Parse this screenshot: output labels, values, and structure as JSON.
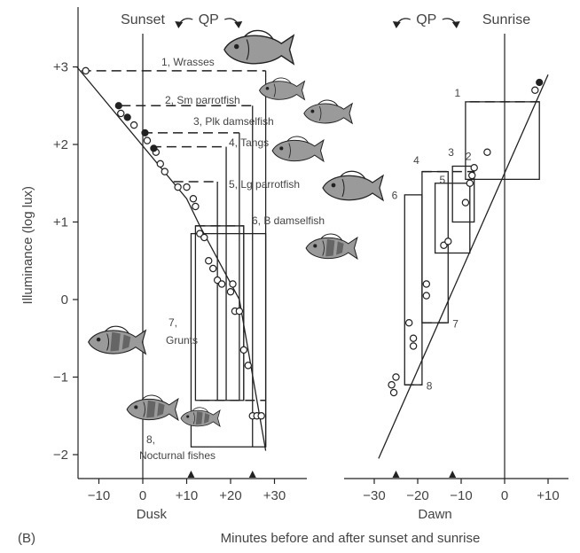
{
  "chart_data": {
    "type": "scatter",
    "panel_label": "(B)",
    "ylabel": "Illuminance (log lux)",
    "xlabel": "Minutes before and after sunset and sunrise",
    "ylim": [
      -2.3,
      3.7
    ],
    "yticks": [
      3,
      2,
      1,
      0,
      -1,
      -2
    ],
    "ytick_labels": [
      "+3",
      "+2",
      "+1",
      "0",
      "−1",
      "−2"
    ],
    "grid": false,
    "dusk": {
      "xlabel": "Dusk",
      "header": "Sunset",
      "qp_label": "QP",
      "reference_line_x": 0,
      "xlim": [
        -14,
        35
      ],
      "xticks": [
        -10,
        0,
        10,
        20,
        30
      ],
      "xtick_labels": [
        "−10",
        "0",
        "+10",
        "+20",
        "+30"
      ],
      "markers_x": [
        11,
        25
      ],
      "points_open": [
        [
          -13,
          2.95
        ],
        [
          -5,
          2.4
        ],
        [
          -2,
          2.25
        ],
        [
          1,
          2.05
        ],
        [
          3,
          1.9
        ],
        [
          4,
          1.75
        ],
        [
          5,
          1.65
        ],
        [
          8,
          1.45
        ],
        [
          10,
          1.45
        ],
        [
          11.5,
          1.3
        ],
        [
          12,
          1.2
        ],
        [
          13,
          0.85
        ],
        [
          14,
          0.8
        ],
        [
          15,
          0.5
        ],
        [
          16,
          0.4
        ],
        [
          17,
          0.25
        ],
        [
          18,
          0.2
        ],
        [
          20,
          0.1
        ],
        [
          20.5,
          0.2
        ],
        [
          21,
          -0.15
        ],
        [
          22,
          -0.15
        ],
        [
          23,
          -0.65
        ],
        [
          24,
          -0.85
        ],
        [
          25,
          -1.5
        ],
        [
          26,
          -1.5
        ],
        [
          27,
          -1.5
        ]
      ],
      "points_filled": [
        [
          -5.5,
          2.5
        ],
        [
          -3.5,
          2.35
        ],
        [
          0.5,
          2.15
        ],
        [
          2.5,
          1.95
        ]
      ],
      "trend": [
        [
          -15,
          3.0
        ],
        [
          10,
          1.3
        ],
        [
          13,
          0.95
        ],
        [
          22,
          0.0
        ],
        [
          28,
          -1.95
        ]
      ],
      "groups": [
        {
          "label": "1, Wrasses",
          "x_start": -14,
          "x_end": 28,
          "y_top": 2.95,
          "y_bottom": -1.9
        },
        {
          "label": "2, Sm parrotfish",
          "x_start": -5,
          "x_end": 25,
          "y_top": 2.5,
          "y_bottom": -1.9
        },
        {
          "label": "3, Plk damselfish",
          "x_start": 0,
          "x_end": 22,
          "y_top": 2.15,
          "y_bottom": -1.3
        },
        {
          "label": "4, Tangs",
          "x_start": 2,
          "x_end": 19,
          "y_top": 1.97,
          "y_bottom": -1.3
        },
        {
          "label": "5, Lg parrotfish",
          "x_start": 7,
          "x_end": 17,
          "y_top": 1.52,
          "y_bottom": -1.3
        },
        {
          "label": "6, B damselfish",
          "x_start": 12,
          "x_end": 23,
          "y_top": 0.95,
          "y_bottom": -1.3
        },
        {
          "label": "7, Grunts",
          "x_start": null,
          "x_end": null,
          "y_top": null,
          "y_bottom": null
        },
        {
          "label": "8, Nocturnal fishes",
          "x_start": null,
          "x_end": null,
          "y_top": null,
          "y_bottom": null
        }
      ]
    },
    "dawn": {
      "xlabel": "Dawn",
      "header": "Sunrise",
      "qp_label": "QP",
      "reference_line_x": 0,
      "xlim": [
        -37,
        15
      ],
      "xticks": [
        -30,
        -20,
        -10,
        0,
        10
      ],
      "xtick_labels": [
        "−30",
        "−20",
        "−10",
        "0",
        "+10"
      ],
      "markers_x": [
        -25,
        -12
      ],
      "points_open": [
        [
          -26,
          -1.1
        ],
        [
          -25.5,
          -1.2
        ],
        [
          -25,
          -1.0
        ],
        [
          -21,
          -0.6
        ],
        [
          -21,
          -0.5
        ],
        [
          -22,
          -0.3
        ],
        [
          -18,
          0.2
        ],
        [
          -18,
          0.05
        ],
        [
          -14,
          0.7
        ],
        [
          -13,
          0.75
        ],
        [
          -9,
          1.25
        ],
        [
          -8,
          1.5
        ],
        [
          -7.5,
          1.6
        ],
        [
          -7,
          1.7
        ],
        [
          -4,
          1.9
        ],
        [
          7,
          2.7
        ]
      ],
      "points_filled": [
        [
          8,
          2.8
        ]
      ],
      "trend": [
        [
          -29,
          -2.05
        ],
        [
          10,
          2.9
        ]
      ],
      "groups": [
        {
          "label": "1",
          "x_start": -8,
          "x_end": 8,
          "y_top": 2.55,
          "y_bottom": 1.6
        },
        {
          "label": "2",
          "x_start": -9,
          "x_end": -6,
          "y_top": 1.8,
          "y_bottom": 1.6
        },
        {
          "label": "3",
          "x_start": -12,
          "x_end": -7,
          "y_top": 1.72,
          "y_bottom": 1.6
        },
        {
          "label": "4",
          "x_start": -19,
          "x_end": -7,
          "y_top": 1.65,
          "y_bottom": 1.6
        },
        {
          "label": "5",
          "x_start": -16,
          "x_end": -8,
          "y_top": 1.5,
          "y_bottom": 1.4
        },
        {
          "label": "6",
          "x_start": -23,
          "x_end": -16,
          "y_top": 1.35,
          "y_bottom": 1.35
        },
        {
          "label": "7",
          "x_start": -19,
          "x_end": -13,
          "y_top": 1.45,
          "y_bottom": -0.3
        },
        {
          "label": "8",
          "x_start": -23,
          "x_end": -19,
          "y_top": 1.3,
          "y_bottom": -1.1
        }
      ]
    }
  }
}
